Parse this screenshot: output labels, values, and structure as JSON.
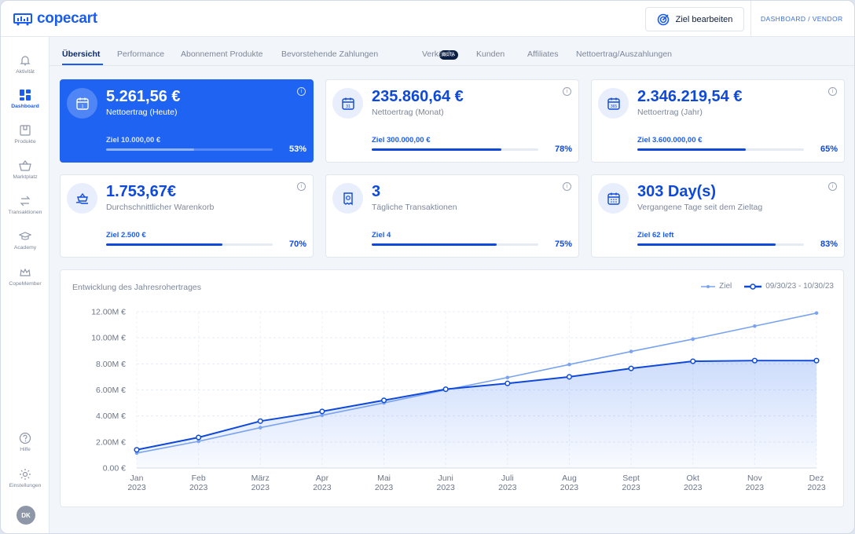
{
  "brand": {
    "name": "copecart"
  },
  "header": {
    "goal_button": "Ziel bearbeiten",
    "breadcrumb": "DASHBOARD / VENDOR"
  },
  "sidebar": {
    "items": [
      {
        "label": "Aktivität",
        "icon": "bell-icon"
      },
      {
        "label": "Dashboard",
        "icon": "grid-icon",
        "active": true
      },
      {
        "label": "Produkte",
        "icon": "box-icon"
      },
      {
        "label": "Marktplatz",
        "icon": "basket-icon"
      },
      {
        "label": "Transaktionen",
        "icon": "swap-icon"
      },
      {
        "label": "Academy",
        "icon": "graduation-cap-icon"
      },
      {
        "label": "CopeMember",
        "icon": "crown-icon"
      }
    ],
    "bottom": [
      {
        "label": "Hilfe",
        "icon": "help-icon"
      },
      {
        "label": "Einstellungen",
        "icon": "gear-icon"
      }
    ],
    "avatar": "DK"
  },
  "tabs": [
    "Übersicht",
    "Performance",
    "Abonnement Produkte",
    "Bevorstehende Zahlungen",
    "Verkäufe",
    "Kunden",
    "Affiliates",
    "Nettoertrag/Auszahlungen"
  ],
  "beta_badge": "BETA",
  "cards": [
    {
      "value": "5.261,56 €",
      "label": "Nettoertrag (Heute)",
      "goal": "Ziel  10.000,00 €",
      "percent": "53%",
      "progress": 0.53,
      "icon": "calendar-day-icon"
    },
    {
      "value": "235.860,64 €",
      "label": "Nettoertrag (Monat)",
      "goal": "Ziel  300.000,00 €",
      "percent": "78%",
      "progress": 0.78,
      "icon": "calendar-month-icon"
    },
    {
      "value": "2.346.219,54 €",
      "label": "Nettoertrag (Jahr)",
      "goal": "Ziel  3.600.000,00 €",
      "percent": "65%",
      "progress": 0.65,
      "icon": "calendar-year-icon"
    },
    {
      "value": "1.753,67€",
      "label": "Durchschnittlicher Warenkorb",
      "goal": "Ziel  2.500 €",
      "percent": "70%",
      "progress": 0.7,
      "icon": "basket-hand-icon"
    },
    {
      "value": "3",
      "label": "Tägliche Transaktionen",
      "goal": "Ziel 4",
      "percent": "75%",
      "progress": 0.75,
      "icon": "receipt-icon"
    },
    {
      "value": "303 Day(s)",
      "label": "Vergangene Tage seit dem Zieltag",
      "goal": "Ziel 62 left",
      "percent": "83%",
      "progress": 0.83,
      "icon": "calendar-grid-icon"
    }
  ],
  "colors": {
    "accent": "#1a5cf0",
    "dark_blue": "#0e49d9",
    "goal_line": "#7aa3ef"
  },
  "chart_data": {
    "type": "line",
    "title": "Entwicklung des Jahresrohertrages",
    "categories": [
      "Jan\n2023",
      "Feb\n2023",
      "März\n2023",
      "Apr\n2023",
      "Mai\n2023",
      "Juni\n2023",
      "Juli\n2023",
      "Aug\n2023",
      "Sept\n2023",
      "Okt\n2023",
      "Nov\n2023",
      "Dez\n2023"
    ],
    "yticks": [
      "0.00 €",
      "2.00M €",
      "4.00M €",
      "6.00M €",
      "8.00M €",
      "10.00M €",
      "12.00M €"
    ],
    "ylim": [
      0,
      12000000
    ],
    "series": [
      {
        "name": "Ziel",
        "values": [
          1150000,
          2050000,
          3100000,
          4050000,
          5000000,
          6000000,
          6950000,
          7950000,
          8950000,
          9900000,
          10900000,
          11900000
        ]
      },
      {
        "name": "09/30/23 - 10/30/23",
        "values": [
          1400000,
          2350000,
          3600000,
          4350000,
          5200000,
          6050000,
          6500000,
          7000000,
          7650000,
          8200000,
          8250000,
          8250000
        ]
      }
    ],
    "grid": true,
    "legend": "top-right"
  }
}
